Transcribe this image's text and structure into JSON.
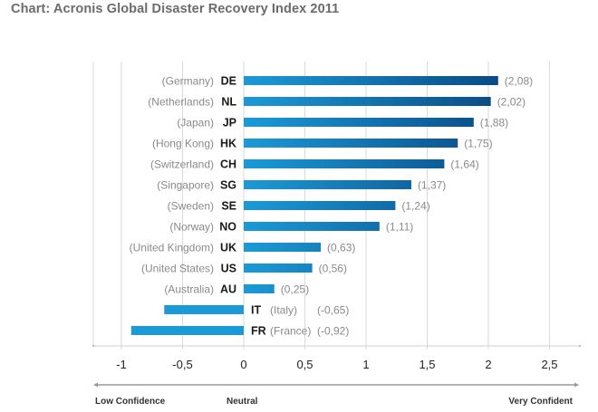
{
  "chart_data": {
    "type": "bar",
    "orientation": "horizontal",
    "title": "Chart: Acronis Global Disaster Recovery Index 2011",
    "categories": [
      {
        "code": "DE",
        "country": "(Germany)",
        "value": 2.08,
        "label": "(2,08)"
      },
      {
        "code": "NL",
        "country": "(Netherlands)",
        "value": 2.02,
        "label": "(2,02)"
      },
      {
        "code": "JP",
        "country": "(Japan)",
        "value": 1.88,
        "label": "(1,88)"
      },
      {
        "code": "HK",
        "country": "(Hong Kong)",
        "value": 1.75,
        "label": "(1,75)"
      },
      {
        "code": "CH",
        "country": "(Switzerland)",
        "value": 1.64,
        "label": "(1,64)"
      },
      {
        "code": "SG",
        "country": "(Singapore)",
        "value": 1.37,
        "label": "(1,37)"
      },
      {
        "code": "SE",
        "country": "(Sweden)",
        "value": 1.24,
        "label": "(1,24)"
      },
      {
        "code": "NO",
        "country": "(Norway)",
        "value": 1.11,
        "label": "(1,11)"
      },
      {
        "code": "UK",
        "country": "(United Kingdom)",
        "value": 0.63,
        "label": "(0,63)"
      },
      {
        "code": "US",
        "country": "(United States)",
        "value": 0.56,
        "label": "(0,56)"
      },
      {
        "code": "AU",
        "country": "(Australia)",
        "value": 0.25,
        "label": "(0,25)"
      },
      {
        "code": "IT",
        "country": "(Italy)",
        "value": -0.65,
        "label": "(-0,65)"
      },
      {
        "code": "FR",
        "country": "(France)",
        "value": -0.92,
        "label": "(-0,92)"
      }
    ],
    "xlim": [
      -1,
      2.5
    ],
    "xticks": [
      -1,
      -0.5,
      0,
      0.5,
      1,
      1.5,
      2,
      2.5
    ],
    "xtick_labels": [
      "-1",
      "-0,5",
      "0",
      "0,5",
      "1",
      "1,5",
      "2",
      "2,5"
    ],
    "xlabel": "",
    "ylabel": "",
    "grid": "vertical",
    "scale_labels": {
      "low": "Low Confidence",
      "neutral": "Neutral",
      "high": "Very Confident"
    },
    "colors": {
      "bar_light": "#1b9ad7",
      "bar_dark": "#0a4b85",
      "grid": "#d9d9d9"
    }
  }
}
